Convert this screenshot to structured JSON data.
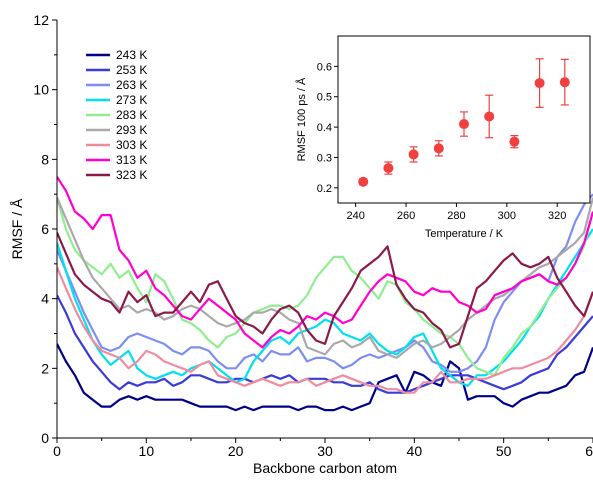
{
  "chart_data": [
    {
      "type": "line",
      "xlabel": "Backbone carbon atom",
      "ylabel": "RMSF / Å",
      "xlim": [
        0,
        60
      ],
      "ylim": [
        0,
        12
      ],
      "xticks": [
        "0",
        "10",
        "20",
        "30",
        "40",
        "50",
        "60"
      ],
      "yticks": [
        "0",
        "2",
        "4",
        "6",
        "8",
        "10",
        "12"
      ],
      "grid": false,
      "legend": "top-left",
      "series": [
        {
          "name": "243 K",
          "color": "#00008b",
          "values": [
            2.7,
            2.2,
            1.8,
            1.3,
            1.1,
            0.9,
            0.9,
            1.1,
            1.2,
            1.1,
            1.2,
            1.1,
            1.1,
            1.1,
            1.1,
            1.0,
            0.9,
            0.9,
            0.9,
            0.9,
            0.8,
            0.9,
            0.8,
            0.9,
            0.9,
            0.9,
            0.9,
            0.8,
            0.9,
            0.9,
            0.8,
            0.8,
            0.9,
            0.8,
            0.9,
            1.0,
            1.6,
            1.7,
            1.8,
            1.3,
            1.9,
            1.8,
            1.6,
            1.5,
            2.2,
            2.0,
            1.1,
            1.2,
            1.2,
            1.2,
            1.0,
            0.9,
            1.1,
            1.2,
            1.3,
            1.3,
            1.4,
            1.5,
            1.8,
            1.9,
            2.6
          ]
        },
        {
          "name": "253 K",
          "color": "#3b3bd8",
          "values": [
            4.1,
            3.6,
            3.0,
            2.6,
            2.2,
            1.9,
            1.6,
            1.4,
            1.6,
            1.5,
            1.6,
            1.6,
            1.7,
            1.5,
            1.6,
            1.8,
            1.8,
            1.7,
            1.6,
            1.6,
            1.7,
            1.7,
            1.6,
            1.7,
            1.8,
            1.7,
            1.8,
            1.6,
            1.7,
            1.7,
            1.7,
            1.6,
            1.6,
            1.5,
            1.5,
            1.6,
            1.4,
            1.3,
            1.3,
            1.3,
            1.4,
            1.5,
            1.6,
            1.7,
            1.8,
            1.8,
            1.8,
            1.7,
            1.6,
            1.5,
            1.4,
            1.5,
            1.6,
            1.8,
            1.9,
            2.0,
            2.4,
            2.6,
            2.9,
            3.2,
            3.5
          ]
        },
        {
          "name": "263 K",
          "color": "#7d8ef2",
          "values": [
            5.4,
            4.8,
            4.2,
            3.6,
            3.1,
            2.6,
            2.5,
            2.6,
            2.9,
            3.0,
            2.9,
            2.8,
            2.7,
            2.5,
            2.4,
            2.6,
            2.6,
            2.5,
            2.2,
            2.0,
            2.0,
            2.3,
            2.4,
            2.2,
            2.5,
            2.4,
            2.4,
            2.6,
            2.2,
            2.3,
            2.3,
            2.2,
            2.0,
            2.1,
            2.3,
            2.4,
            2.3,
            2.4,
            2.5,
            2.6,
            2.8,
            2.6,
            2.2,
            2.1,
            1.9,
            1.9,
            2.0,
            2.2,
            2.6,
            3.4,
            3.9,
            4.2,
            4.5,
            4.6,
            4.7,
            4.5,
            5.2,
            5.5,
            6.2,
            6.7,
            7.0
          ]
        },
        {
          "name": "273 K",
          "color": "#00e0f0",
          "values": [
            5.6,
            4.8,
            4.0,
            3.4,
            2.8,
            2.4,
            2.1,
            2.3,
            2.5,
            2.0,
            1.8,
            1.7,
            1.8,
            1.9,
            1.8,
            2.0,
            2.1,
            2.2,
            2.0,
            1.8,
            1.6,
            1.7,
            2.2,
            2.5,
            2.8,
            2.9,
            2.7,
            3.0,
            3.1,
            3.2,
            3.4,
            3.3,
            3.0,
            2.9,
            2.8,
            3.0,
            2.7,
            2.5,
            2.4,
            2.6,
            2.9,
            3.0,
            2.5,
            2.0,
            1.8,
            1.6,
            1.5,
            1.8,
            1.8,
            2.0,
            2.2,
            2.5,
            2.8,
            3.2,
            3.5,
            4.0,
            4.4,
            4.8,
            5.2,
            5.6,
            6.0
          ]
        },
        {
          "name": "283 K",
          "color": "#90ee90",
          "values": [
            6.9,
            6.0,
            5.4,
            5.1,
            4.9,
            4.7,
            5.0,
            4.6,
            4.8,
            4.3,
            3.9,
            4.7,
            4.5,
            4.0,
            3.4,
            3.3,
            3.1,
            2.8,
            2.6,
            2.9,
            3.0,
            3.3,
            3.6,
            3.7,
            3.8,
            3.8,
            3.7,
            3.8,
            4.1,
            4.6,
            4.9,
            5.2,
            5.2,
            4.8,
            4.6,
            4.3,
            4.0,
            4.5,
            4.4,
            3.9,
            3.7,
            3.4,
            3.2,
            3.0,
            2.9,
            2.7,
            2.3,
            2.0,
            1.9,
            1.8,
            2.3,
            2.6,
            3.0,
            3.2,
            3.6,
            4.0,
            4.3,
            4.6,
            5.0,
            5.5,
            6.5
          ]
        },
        {
          "name": "293 K",
          "color": "#a9a9a9",
          "values": [
            6.9,
            6.3,
            5.7,
            5.1,
            4.6,
            4.3,
            4.0,
            3.7,
            3.8,
            3.6,
            3.7,
            3.6,
            3.4,
            3.5,
            3.7,
            3.8,
            3.7,
            3.5,
            3.3,
            3.2,
            3.3,
            3.4,
            3.6,
            3.6,
            3.7,
            3.6,
            3.4,
            3.3,
            2.6,
            2.5,
            2.4,
            2.7,
            2.8,
            2.6,
            2.7,
            2.9,
            2.5,
            2.4,
            2.3,
            2.5,
            2.7,
            2.8,
            2.6,
            2.7,
            2.9,
            3.1,
            3.4,
            3.6,
            3.8,
            4.0,
            4.1,
            4.3,
            4.5,
            4.7,
            4.9,
            5.0,
            5.2,
            5.4,
            5.6,
            5.9,
            6.9
          ]
        },
        {
          "name": "303 K",
          "color": "#f08ca0",
          "values": [
            4.9,
            4.3,
            3.7,
            3.2,
            2.8,
            2.5,
            2.4,
            2.3,
            2.0,
            2.2,
            2.5,
            2.4,
            2.2,
            2.1,
            2.0,
            1.9,
            2.1,
            2.2,
            1.8,
            1.7,
            1.6,
            1.5,
            1.6,
            1.7,
            1.6,
            1.5,
            1.6,
            1.6,
            1.7,
            1.5,
            1.6,
            1.7,
            1.8,
            1.7,
            1.6,
            1.5,
            1.5,
            1.4,
            1.4,
            1.3,
            1.3,
            1.6,
            1.6,
            1.9,
            1.6,
            1.6,
            1.7,
            1.7,
            1.7,
            1.8,
            1.9,
            2.0,
            2.0,
            2.1,
            2.2,
            2.3,
            2.5,
            2.8,
            3.1,
            3.5,
            4.2
          ]
        },
        {
          "name": "313 K",
          "color": "#ff00d0",
          "values": [
            7.5,
            7.1,
            6.5,
            6.3,
            6.0,
            6.4,
            6.4,
            5.4,
            5.1,
            4.6,
            4.8,
            4.3,
            4.1,
            3.8,
            3.5,
            3.4,
            3.7,
            4.0,
            3.8,
            3.6,
            3.4,
            3.0,
            2.8,
            2.6,
            2.9,
            3.1,
            3.0,
            3.2,
            3.5,
            3.4,
            3.6,
            3.5,
            3.3,
            3.4,
            3.8,
            4.2,
            4.5,
            4.7,
            4.6,
            4.5,
            4.2,
            4.1,
            4.3,
            4.2,
            4.2,
            3.9,
            3.8,
            3.6,
            3.7,
            4.1,
            4.2,
            4.3,
            4.5,
            4.6,
            4.7,
            4.5,
            4.4,
            4.6,
            5.0,
            5.6,
            6.5
          ]
        },
        {
          "name": "323 K",
          "color": "#8b1a4a",
          "values": [
            5.9,
            5.3,
            4.7,
            4.4,
            4.2,
            4.0,
            3.9,
            3.6,
            4.2,
            3.9,
            4.1,
            3.5,
            3.6,
            3.6,
            3.9,
            4.2,
            3.9,
            4.4,
            4.5,
            4.0,
            3.5,
            3.3,
            3.2,
            3.0,
            3.4,
            3.7,
            3.8,
            3.6,
            3.1,
            2.8,
            2.7,
            3.5,
            3.9,
            4.3,
            4.8,
            5.0,
            5.2,
            5.5,
            4.4,
            4.0,
            3.7,
            3.6,
            3.3,
            3.1,
            2.6,
            2.7,
            3.5,
            4.3,
            4.5,
            4.8,
            5.1,
            5.3,
            5.0,
            4.9,
            5.0,
            5.2,
            4.6,
            4.2,
            3.8,
            3.5,
            4.2
          ]
        }
      ]
    },
    {
      "type": "scatter",
      "xlabel": "Temperature / K",
      "ylabel": "RMSF 100 ps / Å",
      "xlim": [
        233,
        333
      ],
      "ylim": [
        0.15,
        0.7
      ],
      "xticks": [
        "240",
        "260",
        "280",
        "300",
        "320"
      ],
      "yticks": [
        "0.2",
        "0.3",
        "0.4",
        "0.5",
        "0.6"
      ],
      "color": "#f04040",
      "x": [
        243,
        253,
        263,
        273,
        283,
        293,
        303,
        313,
        323
      ],
      "y": [
        0.22,
        0.265,
        0.31,
        0.33,
        0.41,
        0.435,
        0.352,
        0.545,
        0.548
      ],
      "error": [
        0.01,
        0.02,
        0.025,
        0.025,
        0.04,
        0.07,
        0.02,
        0.08,
        0.075
      ]
    }
  ]
}
